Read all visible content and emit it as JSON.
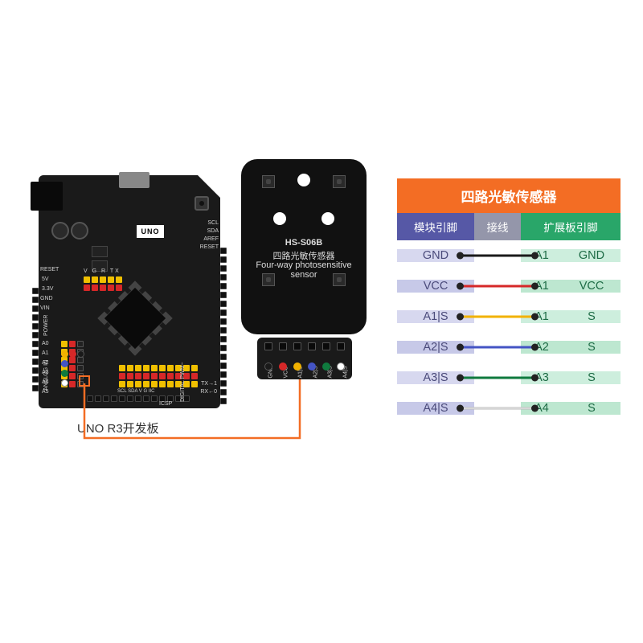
{
  "board": {
    "caption": "UNO R3开发板",
    "uno_label": "UNO",
    "side_labels": {
      "scl": "SCL",
      "sda": "SDA",
      "aref": "AREF",
      "reset": "RESET",
      "power": "POWER",
      "analog": "ANALOG IN",
      "vgr": "V G R TX",
      "sclsda": "SCL SDA V G IIC",
      "tx": "TX→1",
      "rx": "RX←0",
      "a0": "A0",
      "a1": "A1",
      "a2": "A2",
      "a3": "A3",
      "a4": "A4",
      "a5": "A5",
      "p5v": "5V",
      "p33": "3.3V",
      "pgnd": "GND",
      "pvin": "VIN",
      "prst": "RESET",
      "dig": "DIGITAL PWM~",
      "icsp": "ICSP"
    }
  },
  "sensor": {
    "code": "HS-S06B",
    "name_cn": "四路光敏传感器",
    "name_en1": "Four-way photosensitive",
    "name_en2": "sensor",
    "pins": [
      "GND",
      "VCC",
      "A1|S",
      "A2|S",
      "A3|S",
      "A4|S"
    ]
  },
  "wire_colors": {
    "gnd": "#1a1a1a",
    "vcc": "#d62828",
    "a1": "#f2b200",
    "a2": "#4454c4",
    "a3": "#0f7a3e",
    "a4": "#ffffff",
    "orange": "#f36d24"
  },
  "table": {
    "title": "四路光敏传感器",
    "head": [
      "模块引脚",
      "接线",
      "扩展板引脚"
    ],
    "rows": [
      {
        "m": "GND",
        "color": "#1a1a1a",
        "p": "A1",
        "s": "GND"
      },
      {
        "m": "VCC",
        "color": "#d62828",
        "p": "A1",
        "s": "VCC"
      },
      {
        "m": "A1|S",
        "color": "#f2b200",
        "p": "A1",
        "s": "S"
      },
      {
        "m": "A2|S",
        "color": "#4454c4",
        "p": "A2",
        "s": "S"
      },
      {
        "m": "A3|S",
        "color": "#0f7a3e",
        "p": "A3",
        "s": "S"
      },
      {
        "m": "A4|S",
        "color": "#f2f2f2",
        "p": "A4",
        "s": "S"
      }
    ]
  }
}
